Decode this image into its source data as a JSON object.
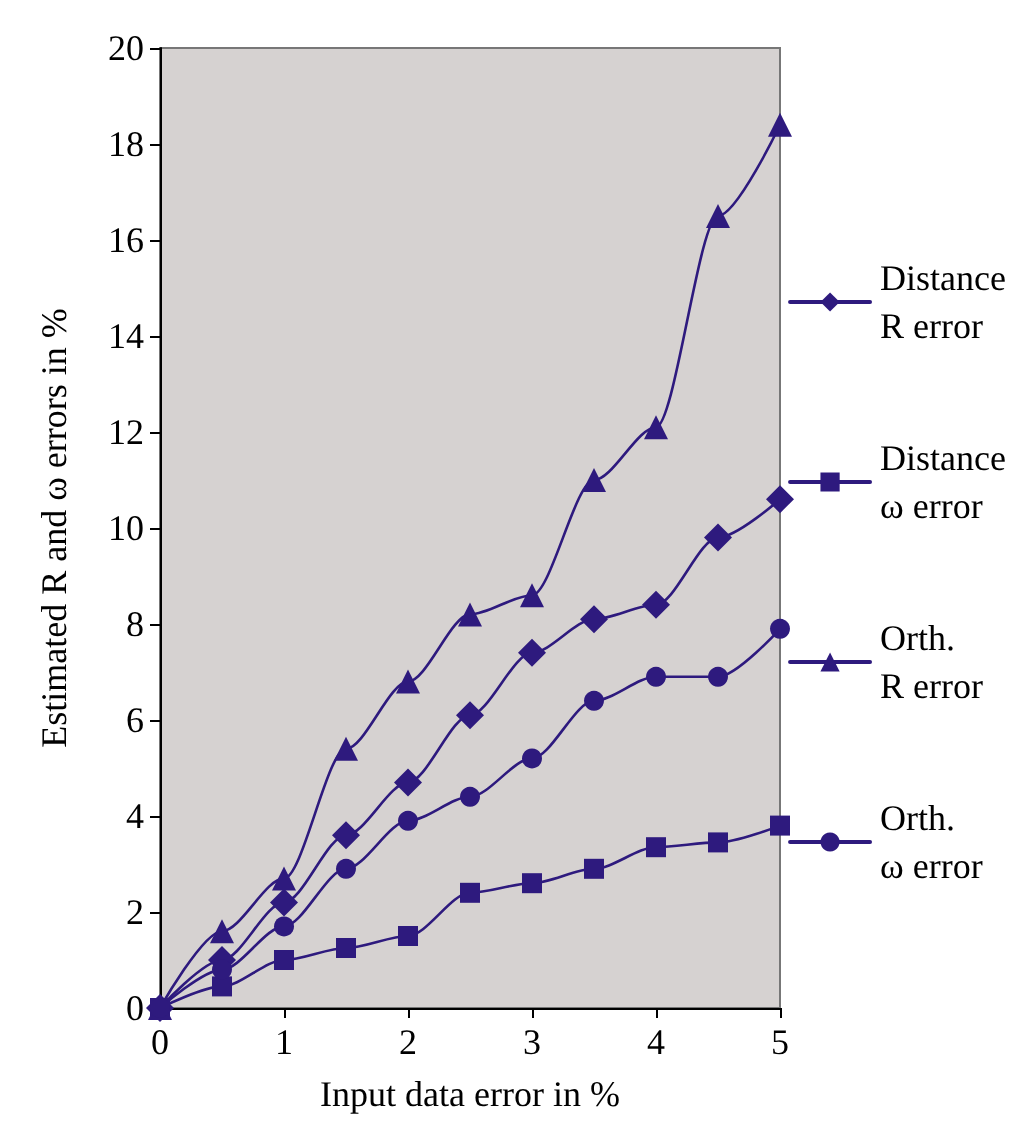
{
  "chart_data": {
    "type": "line",
    "xlabel": "Input data error in %",
    "ylabel": "Estimated R and ω errors in %",
    "x": [
      0,
      0.5,
      1,
      1.5,
      2,
      2.5,
      3,
      3.5,
      4,
      4.5,
      5
    ],
    "series": [
      {
        "name": "Distance\nR error",
        "color": "#2e1a7e",
        "marker": "diamond",
        "values": [
          0,
          1.0,
          2.2,
          3.6,
          4.7,
          6.1,
          7.4,
          8.1,
          8.4,
          9.8,
          10.6
        ]
      },
      {
        "name": "Distance\nω error",
        "color": "#2e1a7e",
        "marker": "square",
        "values": [
          0,
          0.45,
          1.0,
          1.25,
          1.5,
          2.4,
          2.6,
          2.9,
          3.35,
          3.45,
          3.8
        ]
      },
      {
        "name": "Orth.\nR error",
        "color": "#2e1a7e",
        "marker": "triangle",
        "values": [
          0,
          1.6,
          2.7,
          5.4,
          6.8,
          8.2,
          8.6,
          11.0,
          12.1,
          16.5,
          18.4
        ]
      },
      {
        "name": "Orth.\nω error",
        "color": "#2e1a7e",
        "marker": "circle",
        "values": [
          0,
          0.8,
          1.7,
          2.9,
          3.9,
          4.4,
          5.2,
          6.4,
          6.9,
          6.9,
          7.9
        ]
      }
    ],
    "xlim": [
      0,
      5
    ],
    "xticks": [
      0,
      1,
      2,
      3,
      4,
      5
    ],
    "ylim": [
      0,
      20
    ],
    "yticks": [
      0,
      2,
      4,
      6,
      8,
      10,
      12,
      14,
      16,
      18,
      20
    ],
    "grid": false,
    "legend": "right",
    "line_style": "solid"
  }
}
